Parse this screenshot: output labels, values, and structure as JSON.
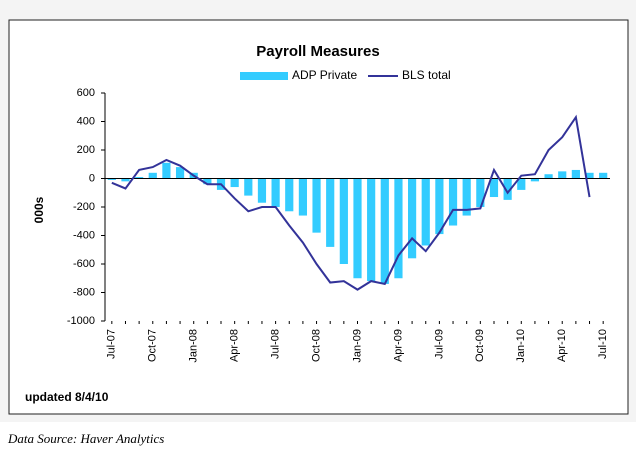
{
  "chart_data": {
    "type": "bar_line",
    "title": "Payroll Measures",
    "ylabel": "000s",
    "annotation": "updated 8/4/10",
    "source": "Data Source: Haver Analytics",
    "categories": [
      "Jul-07",
      null,
      null,
      "Oct-07",
      null,
      null,
      "Jan-08",
      null,
      null,
      "Apr-08",
      null,
      null,
      "Jul-08",
      null,
      null,
      "Oct-08",
      null,
      null,
      "Jan-09",
      null,
      null,
      "Apr-09",
      null,
      null,
      "Jul-09",
      null,
      null,
      "Oct-09",
      null,
      null,
      "Jan-10",
      null,
      null,
      "Apr-10",
      null,
      null,
      "Jul-10"
    ],
    "series": [
      {
        "name": "ADP Private",
        "color": "#33ccff",
        "values": [
          -10,
          -20,
          10,
          40,
          110,
          80,
          40,
          -40,
          -80,
          -60,
          -120,
          -170,
          -200,
          -230,
          -260,
          -380,
          -480,
          -600,
          -700,
          -720,
          -740,
          -700,
          -560,
          -470,
          -390,
          -330,
          -260,
          -200,
          -130,
          -150,
          -80,
          -20,
          30,
          50,
          60,
          40,
          40
        ]
      },
      {
        "name": "BLS total",
        "color": "#333399",
        "values": [
          -30,
          -70,
          60,
          80,
          130,
          90,
          20,
          -40,
          -40,
          -140,
          -230,
          -200,
          -200,
          -330,
          -450,
          -600,
          -730,
          -720,
          -780,
          -720,
          -740,
          -540,
          -420,
          -510,
          -380,
          -220,
          -220,
          -210,
          60,
          -100,
          20,
          30,
          200,
          290,
          430,
          -130,
          null
        ]
      }
    ],
    "ylim": [
      -1000,
      600
    ],
    "yticks": [
      -1000,
      -800,
      -600,
      -400,
      -200,
      0,
      200,
      400,
      600
    ],
    "grid": false
  }
}
